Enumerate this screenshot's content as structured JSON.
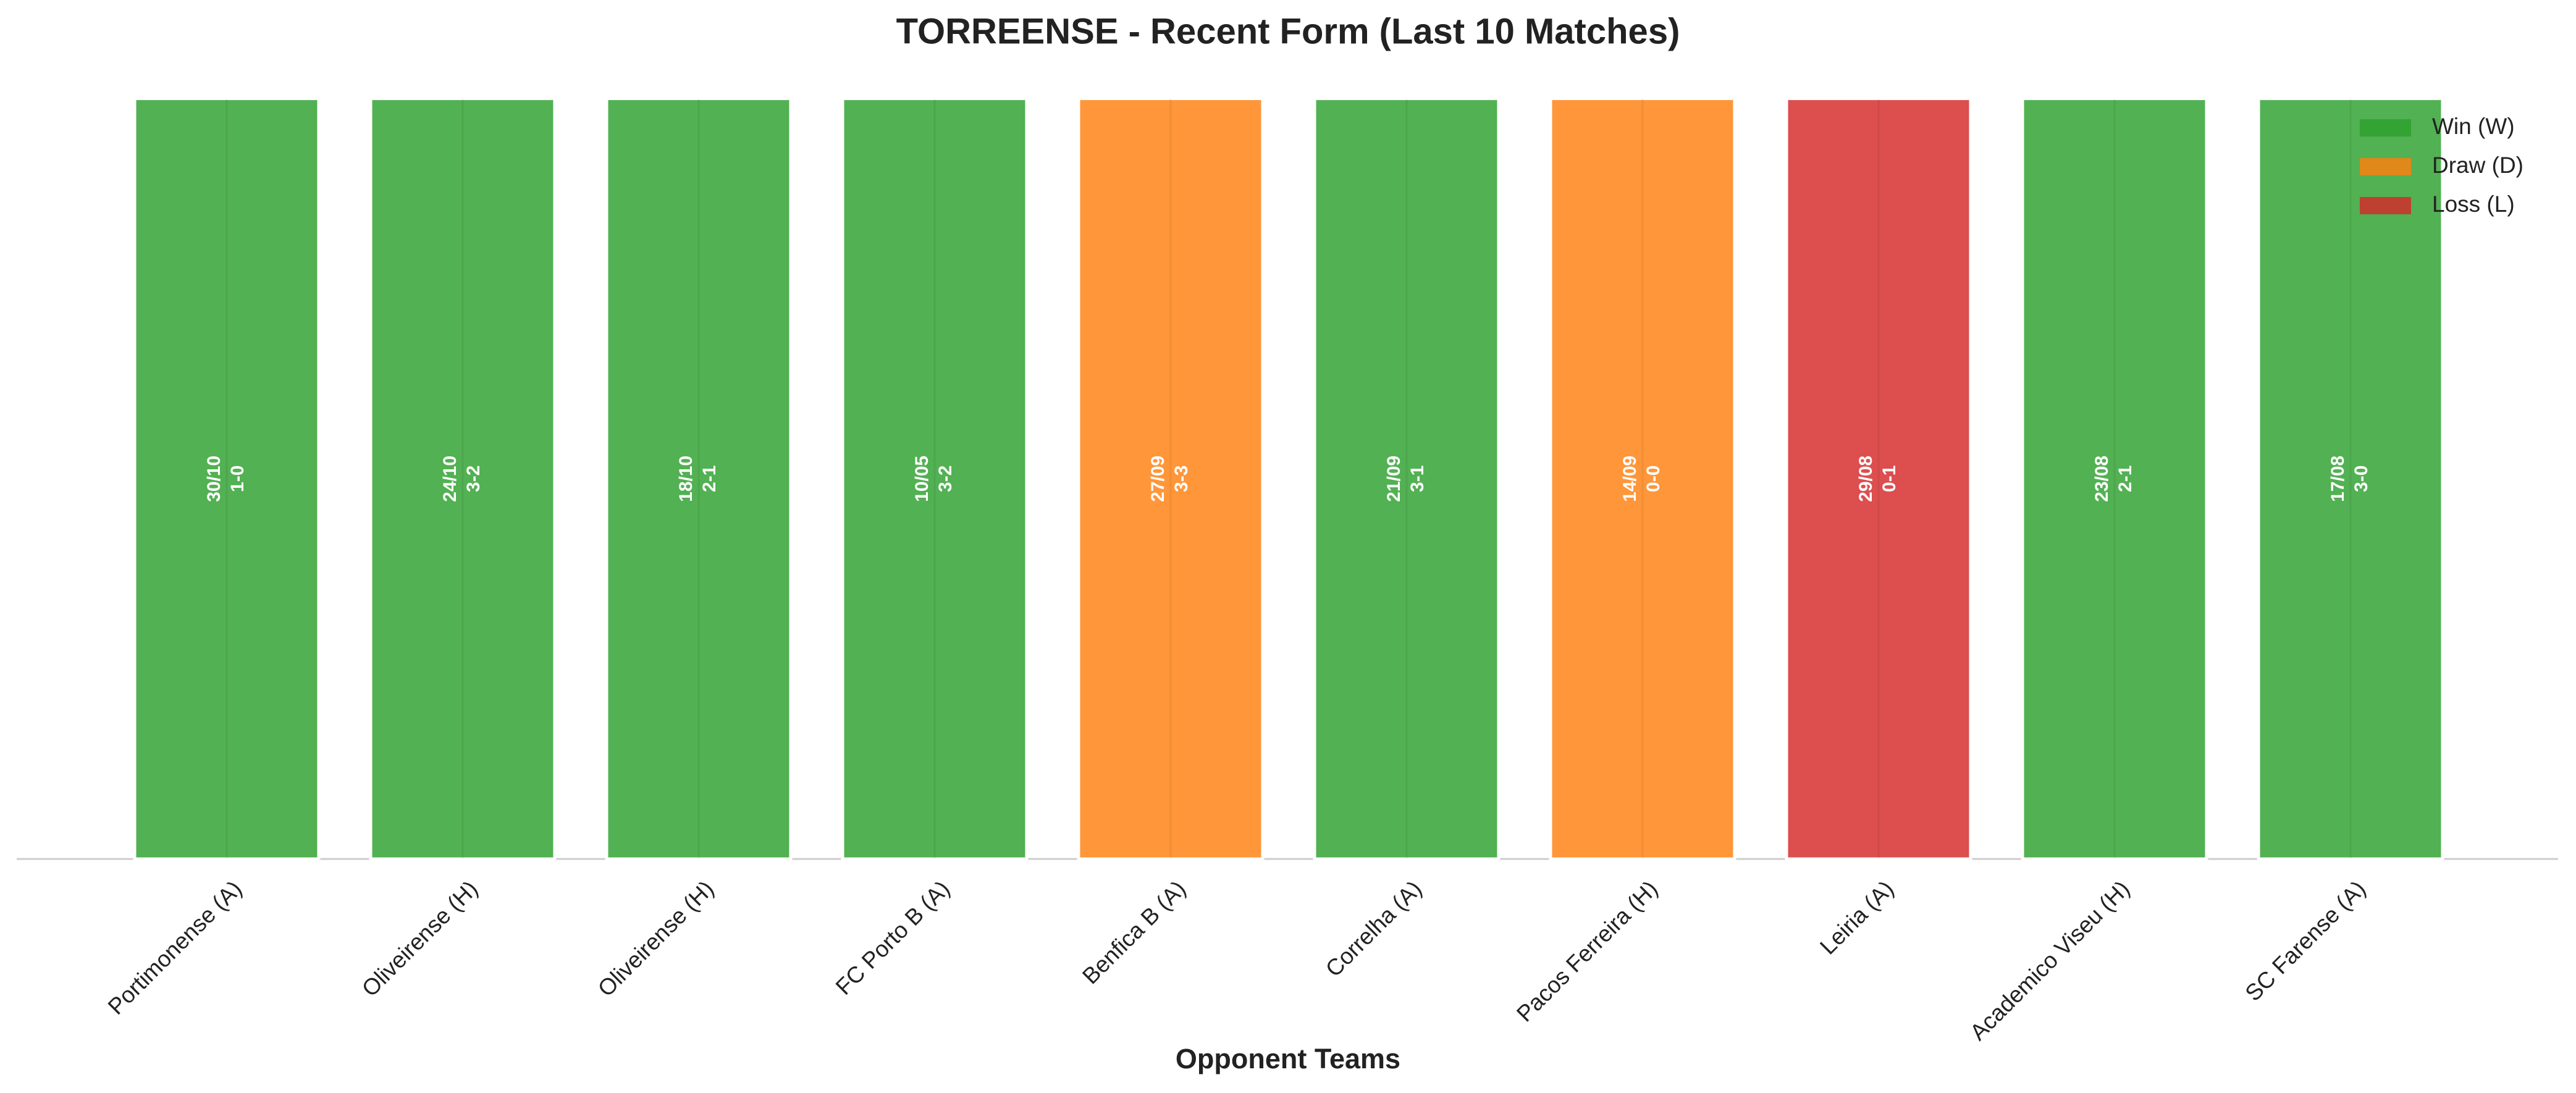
{
  "chart_data": {
    "type": "bar",
    "title": "TORREENSE - Recent Form (Last 10 Matches)",
    "x_label": "Opponent Teams",
    "categories": [
      "Portimonense (A)",
      "Oliveirense (H)",
      "Oliveirense (H)",
      "FC Porto B (A)",
      "Benfica B (A)",
      "Correlha (A)",
      "Pacos Ferreira (H)",
      "Leiria (A)",
      "Academico Viseu (H)",
      "SC Farense (A)"
    ],
    "values": [
      1,
      1,
      1,
      1,
      1,
      1,
      1,
      1,
      1,
      1
    ],
    "dates": [
      "30/10",
      "24/10",
      "18/10",
      "10/05",
      "27/09",
      "21/09",
      "14/09",
      "29/08",
      "23/08",
      "17/08"
    ],
    "scores": [
      "1-0",
      "3-2",
      "2-1",
      "3-2",
      "3-3",
      "3-1",
      "0-0",
      "0-1",
      "2-1",
      "3-0"
    ],
    "colors": [
      "#2ca02c",
      "#2ca02c",
      "#2ca02c",
      "#2ca02c",
      "#ff7f0e",
      "#2ca02c",
      "#ff7f0e",
      "#d62728",
      "#2ca02c",
      "#2ca02c"
    ],
    "ylim": [
      0,
      1.05
    ],
    "legend": [
      {
        "name": "Win (W)",
        "color": "#2ca02c"
      },
      {
        "name": "Draw (D)",
        "color": "#ff7f0e"
      },
      {
        "name": "Loss (L)",
        "color": "#d62728"
      }
    ],
    "legend_position": "upper right"
  }
}
